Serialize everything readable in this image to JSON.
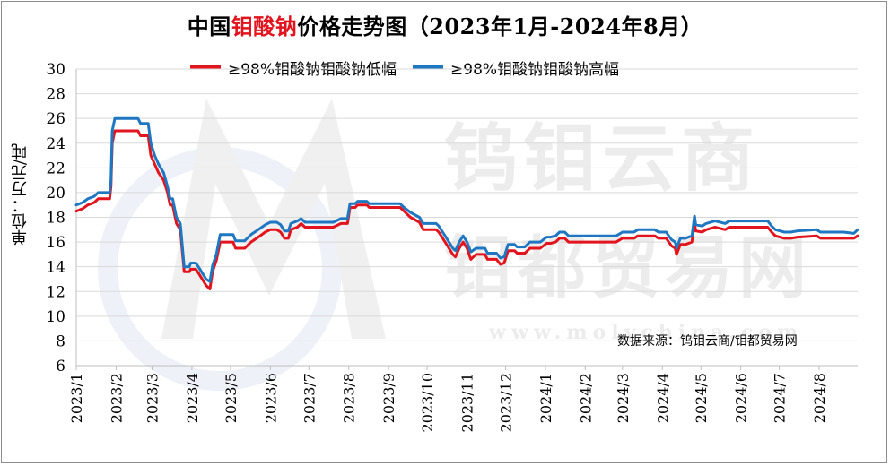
{
  "chart_data": {
    "type": "line",
    "title_prefix": "中国",
    "title_highlight": "钼酸钠",
    "title_suffix": "价格走势图（2023年1月-2024年8月）",
    "ylabel": "单位：万元/吨",
    "ylim": [
      6,
      30
    ],
    "yticks": [
      "6",
      "8",
      "10",
      "12",
      "14",
      "16",
      "18",
      "20",
      "22",
      "24",
      "26",
      "28",
      "30"
    ],
    "xlim": [
      "2023-01-01",
      "2024-08-31"
    ],
    "xticks": [
      {
        "date": "2023-01-01",
        "label": "2023/1"
      },
      {
        "date": "2023-02-01",
        "label": "2023/2"
      },
      {
        "date": "2023-03-01",
        "label": "2023/3"
      },
      {
        "date": "2023-04-01",
        "label": "2023/4"
      },
      {
        "date": "2023-05-01",
        "label": "2023/5"
      },
      {
        "date": "2023-06-01",
        "label": "2023/6"
      },
      {
        "date": "2023-07-01",
        "label": "2023/7"
      },
      {
        "date": "2023-08-01",
        "label": "2023/8"
      },
      {
        "date": "2023-09-01",
        "label": "2023/9"
      },
      {
        "date": "2023-10-01",
        "label": "2023/10"
      },
      {
        "date": "2023-11-01",
        "label": "2023/11"
      },
      {
        "date": "2023-12-01",
        "label": "2023/12"
      },
      {
        "date": "2024-01-01",
        "label": "2024/1"
      },
      {
        "date": "2024-02-01",
        "label": "2024/2"
      },
      {
        "date": "2024-03-01",
        "label": "2024/3"
      },
      {
        "date": "2024-04-01",
        "label": "2024/4"
      },
      {
        "date": "2024-05-01",
        "label": "2024/5"
      },
      {
        "date": "2024-06-01",
        "label": "2024/6"
      },
      {
        "date": "2024-07-01",
        "label": "2024/7"
      },
      {
        "date": "2024-08-01",
        "label": "2024/8"
      }
    ],
    "grid": true,
    "legend_position": "top",
    "series": [
      {
        "name": "≥98%钼酸钠钼酸钠低幅",
        "color": "#e2141e",
        "points": [
          [
            "2023-01-01",
            18.5
          ],
          [
            "2023-01-06",
            18.7
          ],
          [
            "2023-01-10",
            19.0
          ],
          [
            "2023-01-15",
            19.2
          ],
          [
            "2023-01-18",
            19.5
          ],
          [
            "2023-01-27",
            19.5
          ],
          [
            "2023-01-28",
            20.5
          ],
          [
            "2023-01-29",
            24.0
          ],
          [
            "2023-01-31",
            25.0
          ],
          [
            "2023-02-05",
            25.0
          ],
          [
            "2023-02-18",
            25.0
          ],
          [
            "2023-02-20",
            24.6
          ],
          [
            "2023-02-26",
            24.6
          ],
          [
            "2023-02-28",
            23.0
          ],
          [
            "2023-03-03",
            22.3
          ],
          [
            "2023-03-06",
            21.6
          ],
          [
            "2023-03-10",
            21.0
          ],
          [
            "2023-03-13",
            20.0
          ],
          [
            "2023-03-15",
            19.0
          ],
          [
            "2023-03-17",
            19.0
          ],
          [
            "2023-03-20",
            17.5
          ],
          [
            "2023-03-23",
            17.0
          ],
          [
            "2023-03-26",
            13.6
          ],
          [
            "2023-03-30",
            13.6
          ],
          [
            "2023-03-31",
            13.8
          ],
          [
            "2023-04-04",
            13.8
          ],
          [
            "2023-04-06",
            13.5
          ],
          [
            "2023-04-09",
            13.0
          ],
          [
            "2023-04-12",
            12.5
          ],
          [
            "2023-04-15",
            12.2
          ],
          [
            "2023-04-17",
            13.6
          ],
          [
            "2023-04-20",
            14.5
          ],
          [
            "2023-04-23",
            16.0
          ],
          [
            "2023-05-03",
            16.0
          ],
          [
            "2023-05-05",
            15.5
          ],
          [
            "2023-05-12",
            15.5
          ],
          [
            "2023-05-17",
            16.0
          ],
          [
            "2023-05-24",
            16.5
          ],
          [
            "2023-05-28",
            16.8
          ],
          [
            "2023-06-01",
            17.0
          ],
          [
            "2023-06-06",
            17.0
          ],
          [
            "2023-06-09",
            16.8
          ],
          [
            "2023-06-12",
            16.3
          ],
          [
            "2023-06-15",
            16.3
          ],
          [
            "2023-06-17",
            17.0
          ],
          [
            "2023-06-22",
            17.2
          ],
          [
            "2023-06-25",
            17.5
          ],
          [
            "2023-06-28",
            17.2
          ],
          [
            "2023-07-10",
            17.2
          ],
          [
            "2023-07-20",
            17.2
          ],
          [
            "2023-07-26",
            17.5
          ],
          [
            "2023-07-31",
            17.5
          ],
          [
            "2023-08-02",
            18.8
          ],
          [
            "2023-08-06",
            18.8
          ],
          [
            "2023-08-08",
            19.0
          ],
          [
            "2023-08-15",
            19.0
          ],
          [
            "2023-08-17",
            18.8
          ],
          [
            "2023-09-01",
            18.8
          ],
          [
            "2023-09-10",
            18.8
          ],
          [
            "2023-09-13",
            18.5
          ],
          [
            "2023-09-18",
            18.0
          ],
          [
            "2023-09-25",
            17.6
          ],
          [
            "2023-09-28",
            17.0
          ],
          [
            "2023-10-08",
            17.0
          ],
          [
            "2023-10-10",
            16.8
          ],
          [
            "2023-10-15",
            16.0
          ],
          [
            "2023-10-18",
            15.5
          ],
          [
            "2023-10-21",
            15.0
          ],
          [
            "2023-10-23",
            14.8
          ],
          [
            "2023-10-26",
            15.5
          ],
          [
            "2023-10-29",
            16.0
          ],
          [
            "2023-11-01",
            15.5
          ],
          [
            "2023-11-04",
            14.6
          ],
          [
            "2023-11-08",
            15.0
          ],
          [
            "2023-11-15",
            15.0
          ],
          [
            "2023-11-17",
            14.6
          ],
          [
            "2023-11-24",
            14.6
          ],
          [
            "2023-11-27",
            14.2
          ],
          [
            "2023-11-30",
            14.3
          ],
          [
            "2023-12-03",
            15.3
          ],
          [
            "2023-12-08",
            15.3
          ],
          [
            "2023-12-10",
            15.1
          ],
          [
            "2023-12-16",
            15.1
          ],
          [
            "2023-12-20",
            15.5
          ],
          [
            "2023-12-28",
            15.5
          ],
          [
            "2024-01-02",
            15.9
          ],
          [
            "2024-01-05",
            15.9
          ],
          [
            "2024-01-09",
            16.0
          ],
          [
            "2024-01-12",
            16.3
          ],
          [
            "2024-01-16",
            16.3
          ],
          [
            "2024-01-19",
            16.0
          ],
          [
            "2024-01-25",
            16.0
          ],
          [
            "2024-02-05",
            16.0
          ],
          [
            "2024-02-25",
            16.0
          ],
          [
            "2024-03-01",
            16.3
          ],
          [
            "2024-03-10",
            16.3
          ],
          [
            "2024-03-13",
            16.5
          ],
          [
            "2024-03-26",
            16.5
          ],
          [
            "2024-03-29",
            16.3
          ],
          [
            "2024-04-04",
            16.3
          ],
          [
            "2024-04-08",
            15.7
          ],
          [
            "2024-04-11",
            15.5
          ],
          [
            "2024-04-12",
            15.0
          ],
          [
            "2024-04-15",
            15.8
          ],
          [
            "2024-04-19",
            15.8
          ],
          [
            "2024-04-24",
            16.0
          ],
          [
            "2024-04-26",
            17.5
          ],
          [
            "2024-04-27",
            16.9
          ],
          [
            "2024-05-02",
            16.8
          ],
          [
            "2024-05-05",
            17.0
          ],
          [
            "2024-05-12",
            17.2
          ],
          [
            "2024-05-20",
            17.0
          ],
          [
            "2024-05-23",
            17.2
          ],
          [
            "2024-06-10",
            17.2
          ],
          [
            "2024-06-22",
            17.2
          ],
          [
            "2024-06-25",
            16.8
          ],
          [
            "2024-06-28",
            16.5
          ],
          [
            "2024-07-05",
            16.3
          ],
          [
            "2024-07-10",
            16.3
          ],
          [
            "2024-07-15",
            16.4
          ],
          [
            "2024-07-30",
            16.5
          ],
          [
            "2024-08-02",
            16.3
          ],
          [
            "2024-08-20",
            16.3
          ],
          [
            "2024-08-28",
            16.3
          ],
          [
            "2024-08-31",
            16.5
          ]
        ]
      },
      {
        "name": "≥98%钼酸钠钼酸钠高幅",
        "color": "#1f77c2",
        "points": [
          [
            "2023-01-01",
            19.0
          ],
          [
            "2023-01-06",
            19.2
          ],
          [
            "2023-01-10",
            19.5
          ],
          [
            "2023-01-15",
            19.7
          ],
          [
            "2023-01-18",
            20.0
          ],
          [
            "2023-01-27",
            20.0
          ],
          [
            "2023-01-28",
            21.0
          ],
          [
            "2023-01-29",
            25.0
          ],
          [
            "2023-01-31",
            26.0
          ],
          [
            "2023-02-05",
            26.0
          ],
          [
            "2023-02-18",
            26.0
          ],
          [
            "2023-02-20",
            25.6
          ],
          [
            "2023-02-26",
            25.6
          ],
          [
            "2023-02-28",
            24.0
          ],
          [
            "2023-03-03",
            23.0
          ],
          [
            "2023-03-06",
            22.3
          ],
          [
            "2023-03-10",
            21.6
          ],
          [
            "2023-03-13",
            20.5
          ],
          [
            "2023-03-15",
            19.5
          ],
          [
            "2023-03-17",
            19.5
          ],
          [
            "2023-03-20",
            18.0
          ],
          [
            "2023-03-23",
            17.5
          ],
          [
            "2023-03-26",
            14.0
          ],
          [
            "2023-03-30",
            14.0
          ],
          [
            "2023-03-31",
            14.3
          ],
          [
            "2023-04-04",
            14.3
          ],
          [
            "2023-04-06",
            14.0
          ],
          [
            "2023-04-09",
            13.5
          ],
          [
            "2023-04-12",
            13.0
          ],
          [
            "2023-04-15",
            12.8
          ],
          [
            "2023-04-17",
            14.1
          ],
          [
            "2023-04-20",
            15.0
          ],
          [
            "2023-04-23",
            16.6
          ],
          [
            "2023-05-03",
            16.6
          ],
          [
            "2023-05-05",
            16.1
          ],
          [
            "2023-05-12",
            16.1
          ],
          [
            "2023-05-17",
            16.6
          ],
          [
            "2023-05-24",
            17.1
          ],
          [
            "2023-05-28",
            17.4
          ],
          [
            "2023-06-01",
            17.6
          ],
          [
            "2023-06-06",
            17.6
          ],
          [
            "2023-06-09",
            17.4
          ],
          [
            "2023-06-12",
            16.9
          ],
          [
            "2023-06-15",
            16.9
          ],
          [
            "2023-06-17",
            17.5
          ],
          [
            "2023-06-22",
            17.7
          ],
          [
            "2023-06-25",
            17.9
          ],
          [
            "2023-06-28",
            17.6
          ],
          [
            "2023-07-10",
            17.6
          ],
          [
            "2023-07-20",
            17.6
          ],
          [
            "2023-07-26",
            17.9
          ],
          [
            "2023-07-31",
            17.9
          ],
          [
            "2023-08-02",
            19.1
          ],
          [
            "2023-08-06",
            19.1
          ],
          [
            "2023-08-08",
            19.3
          ],
          [
            "2023-08-15",
            19.3
          ],
          [
            "2023-08-17",
            19.1
          ],
          [
            "2023-09-01",
            19.1
          ],
          [
            "2023-09-10",
            19.1
          ],
          [
            "2023-09-13",
            18.8
          ],
          [
            "2023-09-18",
            18.4
          ],
          [
            "2023-09-25",
            18.0
          ],
          [
            "2023-09-28",
            17.5
          ],
          [
            "2023-10-08",
            17.5
          ],
          [
            "2023-10-10",
            17.3
          ],
          [
            "2023-10-15",
            16.5
          ],
          [
            "2023-10-18",
            16.0
          ],
          [
            "2023-10-21",
            15.5
          ],
          [
            "2023-10-23",
            15.3
          ],
          [
            "2023-10-26",
            16.0
          ],
          [
            "2023-10-29",
            16.5
          ],
          [
            "2023-11-01",
            16.0
          ],
          [
            "2023-11-04",
            15.2
          ],
          [
            "2023-11-08",
            15.5
          ],
          [
            "2023-11-15",
            15.5
          ],
          [
            "2023-11-17",
            15.1
          ],
          [
            "2023-11-24",
            15.1
          ],
          [
            "2023-11-27",
            14.7
          ],
          [
            "2023-11-30",
            14.8
          ],
          [
            "2023-12-03",
            15.8
          ],
          [
            "2023-12-08",
            15.8
          ],
          [
            "2023-12-10",
            15.6
          ],
          [
            "2023-12-16",
            15.6
          ],
          [
            "2023-12-20",
            16.0
          ],
          [
            "2023-12-28",
            16.0
          ],
          [
            "2024-01-02",
            16.4
          ],
          [
            "2024-01-05",
            16.4
          ],
          [
            "2024-01-09",
            16.5
          ],
          [
            "2024-01-12",
            16.8
          ],
          [
            "2024-01-16",
            16.8
          ],
          [
            "2024-01-19",
            16.5
          ],
          [
            "2024-01-25",
            16.5
          ],
          [
            "2024-02-05",
            16.5
          ],
          [
            "2024-02-25",
            16.5
          ],
          [
            "2024-03-01",
            16.8
          ],
          [
            "2024-03-10",
            16.8
          ],
          [
            "2024-03-13",
            17.0
          ],
          [
            "2024-03-26",
            17.0
          ],
          [
            "2024-03-29",
            16.8
          ],
          [
            "2024-04-04",
            16.8
          ],
          [
            "2024-04-08",
            16.2
          ],
          [
            "2024-04-11",
            16.0
          ],
          [
            "2024-04-12",
            15.5
          ],
          [
            "2024-04-15",
            16.3
          ],
          [
            "2024-04-19",
            16.3
          ],
          [
            "2024-04-24",
            16.5
          ],
          [
            "2024-04-26",
            18.1
          ],
          [
            "2024-04-27",
            17.4
          ],
          [
            "2024-05-02",
            17.3
          ],
          [
            "2024-05-05",
            17.5
          ],
          [
            "2024-05-12",
            17.7
          ],
          [
            "2024-05-20",
            17.5
          ],
          [
            "2024-05-23",
            17.7
          ],
          [
            "2024-06-10",
            17.7
          ],
          [
            "2024-06-22",
            17.7
          ],
          [
            "2024-06-25",
            17.3
          ],
          [
            "2024-06-28",
            17.0
          ],
          [
            "2024-07-05",
            16.8
          ],
          [
            "2024-07-10",
            16.8
          ],
          [
            "2024-07-15",
            16.9
          ],
          [
            "2024-07-30",
            17.0
          ],
          [
            "2024-08-02",
            16.8
          ],
          [
            "2024-08-20",
            16.8
          ],
          [
            "2024-08-28",
            16.7
          ],
          [
            "2024-08-31",
            17.0
          ]
        ]
      }
    ],
    "source_note": "数据来源：钨钼云商/钼都贸易网",
    "watermark_text": [
      "钨钼云商",
      "钼都贸易网",
      "www.molychina.com"
    ]
  }
}
